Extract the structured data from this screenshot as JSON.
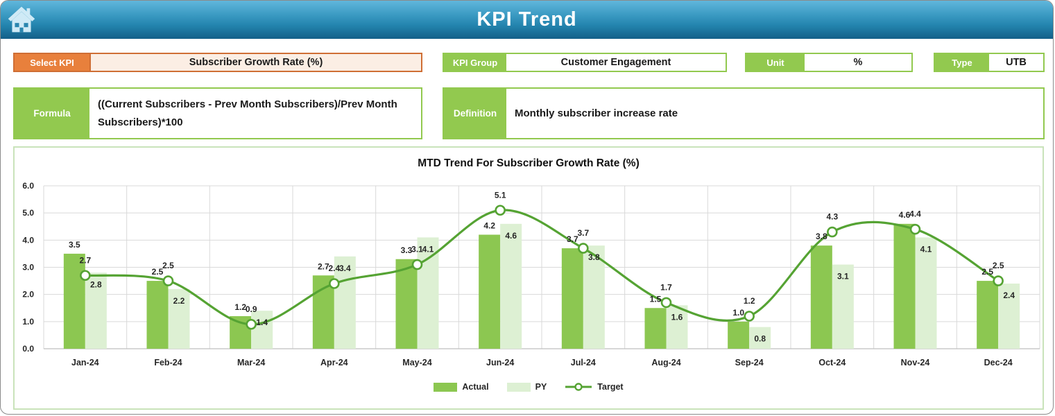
{
  "header": {
    "title": "KPI Trend",
    "home_icon": "home-icon"
  },
  "filters": {
    "select_kpi": {
      "label": "Select KPI",
      "value": "Subscriber Growth Rate (%)"
    },
    "kpi_group": {
      "label": "KPI Group",
      "value": "Customer Engagement"
    },
    "unit": {
      "label": "Unit",
      "value": "%"
    },
    "type": {
      "label": "Type",
      "value": "UTB"
    }
  },
  "formula": {
    "label": "Formula",
    "value": "((Current Subscribers - Prev Month Subscribers)/Prev Month Subscribers)*100"
  },
  "definition": {
    "label": "Definition",
    "value": "Monthly subscriber increase rate"
  },
  "chart_data": {
    "type": "combo-bar-line",
    "title": "MTD Trend For Subscriber Growth Rate (%)",
    "categories": [
      "Jan-24",
      "Feb-24",
      "Mar-24",
      "Apr-24",
      "May-24",
      "Jun-24",
      "Jul-24",
      "Aug-24",
      "Sep-24",
      "Oct-24",
      "Nov-24",
      "Dec-24"
    ],
    "series": [
      {
        "name": "Actual",
        "type": "bar",
        "color": "#8cc751",
        "values": [
          3.5,
          2.5,
          1.2,
          2.7,
          3.3,
          4.2,
          3.7,
          1.5,
          1.0,
          3.8,
          4.6,
          2.5
        ]
      },
      {
        "name": "PY",
        "type": "bar",
        "color": "#ddf0d3",
        "values": [
          2.8,
          2.2,
          1.4,
          3.4,
          4.1,
          4.6,
          3.8,
          1.6,
          0.8,
          3.1,
          4.1,
          2.4
        ]
      },
      {
        "name": "Target",
        "type": "line",
        "color": "#55a333",
        "values": [
          2.7,
          2.5,
          0.9,
          2.4,
          3.1,
          5.1,
          3.7,
          1.7,
          1.2,
          4.3,
          4.4,
          2.5
        ]
      }
    ],
    "ylim": [
      0,
      6
    ],
    "ytick_step": 1.0,
    "ytick_labels": [
      "0.0",
      "1.0",
      "2.0",
      "3.0",
      "4.0",
      "5.0",
      "6.0"
    ],
    "grid": true,
    "legend_position": "bottom",
    "colors": {
      "gridline": "#d9d9d9",
      "axis_line": "#bfbfbf",
      "label_text": "#262626"
    }
  }
}
